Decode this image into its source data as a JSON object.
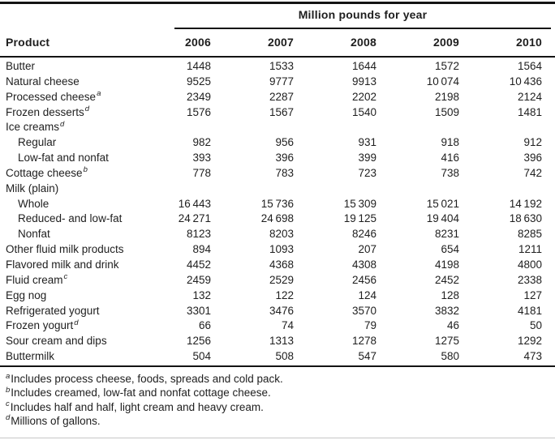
{
  "table": {
    "span_header": "Million pounds for year",
    "product_header": "Product",
    "years": [
      "2006",
      "2007",
      "2008",
      "2009",
      "2010"
    ],
    "rows": [
      {
        "label": "Butter",
        "indent": 0,
        "sup": "",
        "values": [
          "1448",
          "1533",
          "1644",
          "1572",
          "1564"
        ]
      },
      {
        "label": "Natural cheese",
        "indent": 0,
        "sup": "",
        "values": [
          "9525",
          "9777",
          "9913",
          "10 074",
          "10 436"
        ]
      },
      {
        "label": "Processed cheese",
        "indent": 0,
        "sup": "a",
        "values": [
          "2349",
          "2287",
          "2202",
          "2198",
          "2124"
        ]
      },
      {
        "label": "Frozen desserts",
        "indent": 0,
        "sup": "d",
        "values": [
          "1576",
          "1567",
          "1540",
          "1509",
          "1481"
        ]
      },
      {
        "label": "Ice creams",
        "indent": 0,
        "sup": "d",
        "values": [
          "",
          "",
          "",
          "",
          ""
        ]
      },
      {
        "label": "Regular",
        "indent": 1,
        "sup": "",
        "values": [
          "982",
          "956",
          "931",
          "918",
          "912"
        ]
      },
      {
        "label": "Low-fat and nonfat",
        "indent": 1,
        "sup": "",
        "values": [
          "393",
          "396",
          "399",
          "416",
          "396"
        ]
      },
      {
        "label": "Cottage cheese",
        "indent": 0,
        "sup": "b",
        "values": [
          "778",
          "783",
          "723",
          "738",
          "742"
        ]
      },
      {
        "label": "Milk (plain)",
        "indent": 0,
        "sup": "",
        "values": [
          "",
          "",
          "",
          "",
          ""
        ]
      },
      {
        "label": "Whole",
        "indent": 1,
        "sup": "",
        "values": [
          "16 443",
          "15 736",
          "15 309",
          "15 021",
          "14 192"
        ]
      },
      {
        "label": "Reduced- and low-fat",
        "indent": 1,
        "sup": "",
        "values": [
          "24 271",
          "24 698",
          "19 125",
          "19 404",
          "18 630"
        ]
      },
      {
        "label": "Nonfat",
        "indent": 1,
        "sup": "",
        "values": [
          "8123",
          "8203",
          "8246",
          "8231",
          "8285"
        ]
      },
      {
        "label": "Other fluid milk products",
        "indent": 0,
        "sup": "",
        "values": [
          "894",
          "1093",
          "207",
          "654",
          "1211"
        ]
      },
      {
        "label": "Flavored milk and drink",
        "indent": 0,
        "sup": "",
        "values": [
          "4452",
          "4368",
          "4308",
          "4198",
          "4800"
        ]
      },
      {
        "label": "Fluid cream",
        "indent": 0,
        "sup": "c",
        "values": [
          "2459",
          "2529",
          "2456",
          "2452",
          "2338"
        ]
      },
      {
        "label": "Egg nog",
        "indent": 0,
        "sup": "",
        "values": [
          "132",
          "122",
          "124",
          "128",
          "127"
        ]
      },
      {
        "label": "Refrigerated yogurt",
        "indent": 0,
        "sup": "",
        "values": [
          "3301",
          "3476",
          "3570",
          "3832",
          "4181"
        ]
      },
      {
        "label": "Frozen yogurt",
        "indent": 0,
        "sup": "d",
        "values": [
          "66",
          "74",
          "79",
          "46",
          "50"
        ]
      },
      {
        "label": "Sour cream and dips",
        "indent": 0,
        "sup": "",
        "values": [
          "1256",
          "1313",
          "1278",
          "1275",
          "1292"
        ]
      },
      {
        "label": "Buttermilk",
        "indent": 0,
        "sup": "",
        "values": [
          "504",
          "508",
          "547",
          "580",
          "473"
        ]
      }
    ]
  },
  "footnotes": [
    {
      "marker": "a",
      "text": "Includes process cheese, foods, spreads and cold pack."
    },
    {
      "marker": "b",
      "text": "Includes creamed, low-fat and nonfat cottage cheese."
    },
    {
      "marker": "c",
      "text": "Includes half and half, light cream and heavy cream."
    },
    {
      "marker": "d",
      "text": "Millions of gallons."
    }
  ],
  "colors": {
    "text": "#1e1e1e",
    "rule": "#141414",
    "faint_rule": "#c6c6c6",
    "background": "#ffffff"
  }
}
